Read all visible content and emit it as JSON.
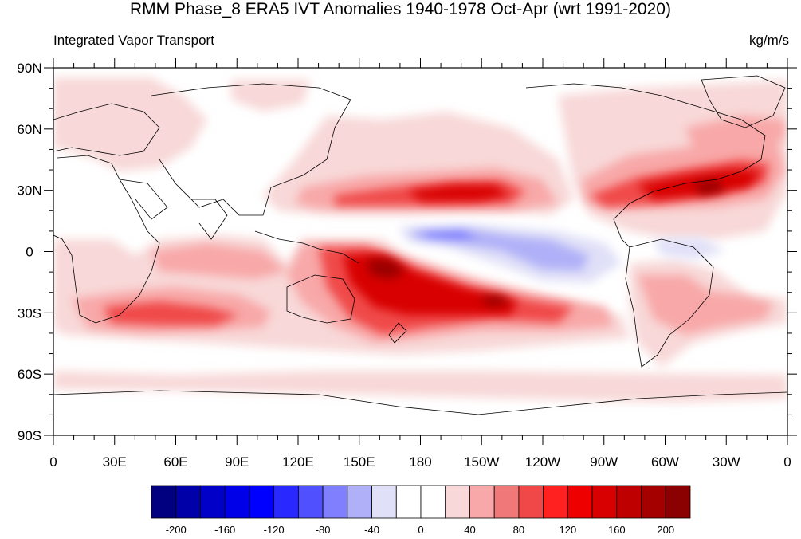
{
  "title": "RMM Phase_8 ERA5 IVT Anomalies 1940-1978 Oct-Apr (wrt 1991-2020)",
  "left_subtitle": "Integrated Vapor Transport",
  "right_subtitle": "kg/m/s",
  "lat_labels": [
    "90N",
    "60N",
    "30N",
    "0",
    "30S",
    "60S",
    "90S"
  ],
  "lon_labels": [
    "0",
    "30E",
    "60E",
    "90E",
    "120E",
    "150E",
    "180",
    "150W",
    "120W",
    "90W",
    "60W",
    "30W",
    "0"
  ],
  "colorbar": {
    "colors": [
      "#000080",
      "#0000a8",
      "#0000c8",
      "#0000e8",
      "#0000ff",
      "#2828ff",
      "#5050ff",
      "#8080ff",
      "#b0b0f8",
      "#e0e0f8",
      "#ffffff",
      "#ffffff",
      "#f8d8d8",
      "#f8a8a8",
      "#f07878",
      "#f04848",
      "#ff2020",
      "#ee0000",
      "#d80000",
      "#bf0000",
      "#a50000",
      "#8b0000"
    ],
    "labels": [
      "-200",
      "-160",
      "-120",
      "-80",
      "-40",
      "0",
      "40",
      "80",
      "120",
      "160",
      "200"
    ]
  },
  "chart_data": {
    "type": "heatmap",
    "title": "RMM Phase_8 ERA5 IVT Anomalies 1940-1978 Oct-Apr (wrt 1991-2020)",
    "variable": "Integrated Vapor Transport",
    "units": "kg/m/s",
    "lon_range": [
      0,
      360
    ],
    "lat_range": [
      -90,
      90
    ],
    "levels": [
      -200,
      -180,
      -160,
      -140,
      -120,
      -100,
      -80,
      -60,
      -40,
      -20,
      0,
      20,
      40,
      60,
      80,
      100,
      120,
      140,
      160,
      180,
      200
    ],
    "features": [
      {
        "region": "North Pacific band (~30N, 130E-130W)",
        "anomaly": 140
      },
      {
        "region": "North Atlantic band (~30-45N, 80W-20W)",
        "anomaly": 160
      },
      {
        "region": "South Pacific Convergence Zone (~0-35S, 150E-110W)",
        "anomaly": 180
      },
      {
        "region": "South Indian Ocean (~30S, 30E-80E)",
        "anomaly": 120
      },
      {
        "region": "South Atlantic / South America (~30S, 60W-0)",
        "anomaly": 100
      },
      {
        "region": "Tropical East Pacific (~5N-20S, 170W-90W)",
        "anomaly": -60
      },
      {
        "region": "Southern Ocean (~60S)",
        "anomaly": 30
      }
    ]
  }
}
